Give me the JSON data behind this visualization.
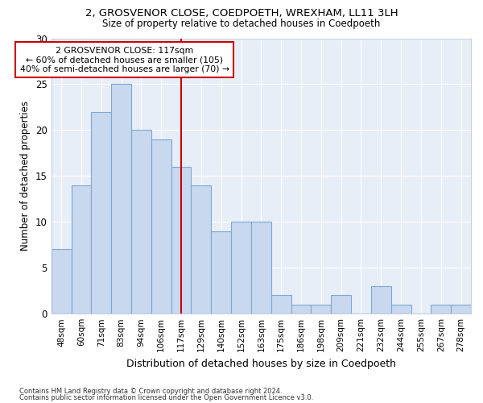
{
  "title1": "2, GROSVENOR CLOSE, COEDPOETH, WREXHAM, LL11 3LH",
  "title2": "Size of property relative to detached houses in Coedpoeth",
  "xlabel": "Distribution of detached houses by size in Coedpoeth",
  "ylabel": "Number of detached properties",
  "categories": [
    "48sqm",
    "60sqm",
    "71sqm",
    "83sqm",
    "94sqm",
    "106sqm",
    "117sqm",
    "129sqm",
    "140sqm",
    "152sqm",
    "163sqm",
    "175sqm",
    "186sqm",
    "198sqm",
    "209sqm",
    "221sqm",
    "232sqm",
    "244sqm",
    "255sqm",
    "267sqm",
    "278sqm"
  ],
  "values": [
    7,
    14,
    22,
    25,
    20,
    19,
    16,
    14,
    9,
    10,
    10,
    2,
    1,
    1,
    2,
    0,
    3,
    1,
    0,
    1,
    1
  ],
  "bar_color": "#c8d8ef",
  "bar_edge_color": "#7fa8d0",
  "highlight_index": 6,
  "highlight_line_color": "#cc0000",
  "annotation_line1": "2 GROSVENOR CLOSE: 117sqm",
  "annotation_line2": "← 60% of detached houses are smaller (105)",
  "annotation_line3": "40% of semi-detached houses are larger (70) →",
  "annotation_box_color": "#ffffff",
  "annotation_box_edge_color": "#cc0000",
  "footer1": "Contains HM Land Registry data © Crown copyright and database right 2024.",
  "footer2": "Contains public sector information licensed under the Open Government Licence v3.0.",
  "background_color": "#ffffff",
  "plot_bg_color": "#e8eef8",
  "ylim": [
    0,
    30
  ],
  "yticks": [
    0,
    5,
    10,
    15,
    20,
    25,
    30
  ]
}
